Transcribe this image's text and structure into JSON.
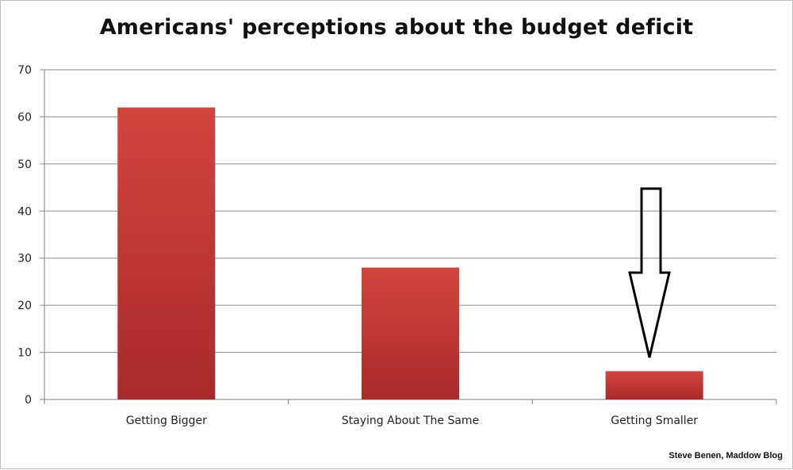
{
  "chart_data": {
    "type": "bar",
    "title": "Americans' perceptions about the budget deficit",
    "categories": [
      "Getting Bigger",
      "Staying About The Same",
      "Getting Smaller"
    ],
    "values": [
      62,
      28,
      6
    ],
    "ylim": [
      0,
      70
    ],
    "yticks": [
      0,
      10,
      20,
      30,
      40,
      50,
      60,
      70
    ],
    "xlabel": "",
    "ylabel": "",
    "grid": true,
    "legend": "none",
    "bar_color": "#c43b3b",
    "annotation": "arrow-down-icon",
    "credit": "Steve Benen, Maddow Blog"
  }
}
